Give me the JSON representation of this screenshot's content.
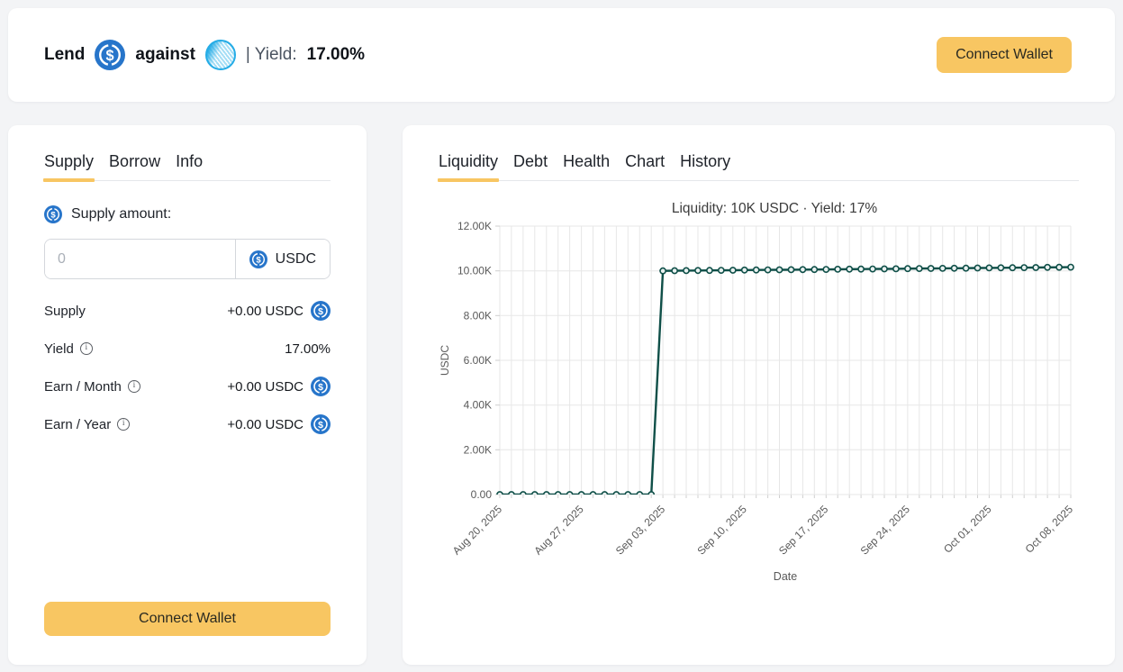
{
  "colors": {
    "accent": "#f8c662",
    "line": "#0f4f48",
    "usdc_blue": "#2775ca",
    "token_blue": "#25ace6",
    "page_bg": "#f3f4f6",
    "card_bg": "#ffffff"
  },
  "icons": {
    "lend_token": "usdc-circle-dollar-icon",
    "collateral_token": "hatched-sphere-token-icon",
    "info": "circled-i-info-icon"
  },
  "header": {
    "lend_label": "Lend",
    "against_label": "against",
    "yield_label": "| Yield:",
    "yield_value": "17.00%",
    "connect_wallet_label": "Connect Wallet"
  },
  "panel_supply": {
    "tabs": [
      {
        "label": "Supply",
        "active": true
      },
      {
        "label": "Borrow",
        "active": false
      },
      {
        "label": "Info",
        "active": false
      }
    ],
    "supply_amount_label": "Supply amount:",
    "input": {
      "value": "",
      "placeholder": "0",
      "currency": "USDC"
    },
    "rows": [
      {
        "label": "Supply",
        "has_info": false,
        "value": "+0.00 USDC",
        "has_usdc_icon": true
      },
      {
        "label": "Yield",
        "has_info": true,
        "value": "17.00%",
        "has_usdc_icon": false
      },
      {
        "label": "Earn / Month",
        "has_info": true,
        "value": "+0.00 USDC",
        "has_usdc_icon": true
      },
      {
        "label": "Earn / Year",
        "has_info": true,
        "value": "+0.00 USDC",
        "has_usdc_icon": true
      }
    ],
    "connect_wallet_label": "Connect Wallet"
  },
  "panel_chart": {
    "tabs": [
      {
        "label": "Liquidity",
        "active": true
      },
      {
        "label": "Debt",
        "active": false
      },
      {
        "label": "Health",
        "active": false
      },
      {
        "label": "Chart",
        "active": false
      },
      {
        "label": "History",
        "active": false
      }
    ]
  },
  "chart_data": {
    "type": "line",
    "title": "Liquidity: 10K USDC · Yield: 17%",
    "xlabel": "Date",
    "ylabel": "USDC",
    "ylim": [
      0,
      12000
    ],
    "y_tick_step": 2000,
    "y_tick_labels": [
      "0.00",
      "2.00K",
      "4.00K",
      "6.00K",
      "8.00K",
      "10.00K",
      "12.00K"
    ],
    "x_tick_every": 7,
    "grid": true,
    "legend": false,
    "marker": "open-circle",
    "line_color": "#0f4f48",
    "x": [
      "Aug 20, 2025",
      "Aug 21, 2025",
      "Aug 22, 2025",
      "Aug 23, 2025",
      "Aug 24, 2025",
      "Aug 25, 2025",
      "Aug 26, 2025",
      "Aug 27, 2025",
      "Aug 28, 2025",
      "Aug 29, 2025",
      "Aug 30, 2025",
      "Aug 31, 2025",
      "Sep 01, 2025",
      "Sep 02, 2025",
      "Sep 03, 2025",
      "Sep 04, 2025",
      "Sep 05, 2025",
      "Sep 06, 2025",
      "Sep 07, 2025",
      "Sep 08, 2025",
      "Sep 09, 2025",
      "Sep 10, 2025",
      "Sep 11, 2025",
      "Sep 12, 2025",
      "Sep 13, 2025",
      "Sep 14, 2025",
      "Sep 15, 2025",
      "Sep 16, 2025",
      "Sep 17, 2025",
      "Sep 18, 2025",
      "Sep 19, 2025",
      "Sep 20, 2025",
      "Sep 21, 2025",
      "Sep 22, 2025",
      "Sep 23, 2025",
      "Sep 24, 2025",
      "Sep 25, 2025",
      "Sep 26, 2025",
      "Sep 27, 2025",
      "Sep 28, 2025",
      "Sep 29, 2025",
      "Sep 30, 2025",
      "Oct 01, 2025",
      "Oct 02, 2025",
      "Oct 03, 2025",
      "Oct 04, 2025",
      "Oct 05, 2025",
      "Oct 06, 2025",
      "Oct 07, 2025",
      "Oct 08, 2025"
    ],
    "values": [
      0,
      0,
      0,
      0,
      0,
      0,
      0,
      0,
      0,
      0,
      0,
      0,
      0,
      0,
      10000,
      10005,
      10009,
      10014,
      10019,
      10023,
      10028,
      10033,
      10037,
      10042,
      10047,
      10051,
      10056,
      10061,
      10065,
      10070,
      10075,
      10079,
      10084,
      10089,
      10093,
      10098,
      10102,
      10107,
      10112,
      10116,
      10121,
      10126,
      10130,
      10135,
      10140,
      10144,
      10149,
      10154,
      10158,
      10163
    ]
  }
}
